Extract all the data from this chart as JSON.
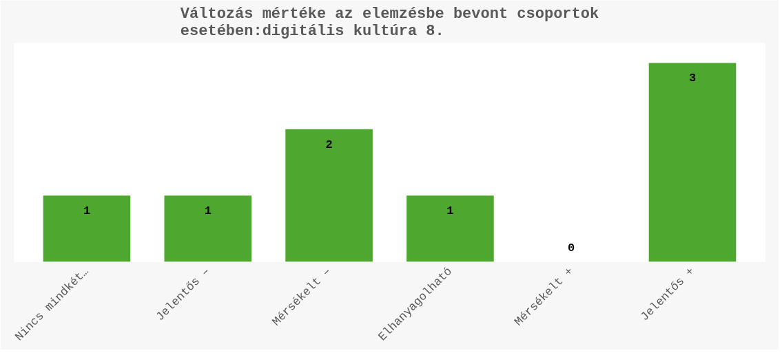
{
  "chart_data": {
    "type": "bar",
    "title": "Változás mértéke az elemzésbe bevont csoportok esetében:digitális kultúra 8.",
    "categories": [
      "Nincs mindkét…",
      "Jelentős –",
      "Mérsékelt –",
      "Elhanyagolható",
      "Mérsékelt +",
      "Jelentős +"
    ],
    "values": [
      1,
      1,
      2,
      1,
      0,
      3
    ],
    "color": "#4ea72e",
    "data_labels": true
  }
}
